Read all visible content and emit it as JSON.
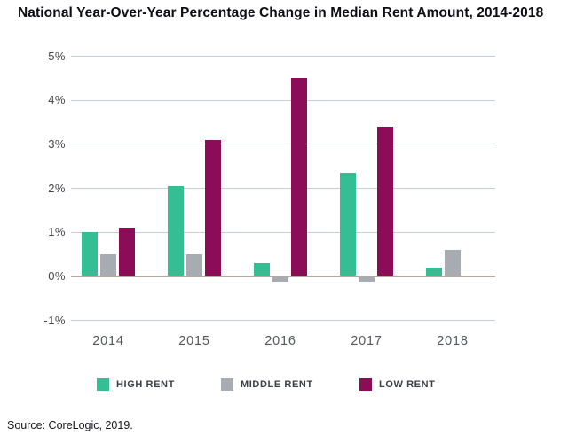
{
  "page": {
    "source": "Source: CoreLogic, 2019."
  },
  "chart_data": {
    "type": "bar",
    "title": "National Year-Over-Year Percentage Change in Median Rent Amount, 2014-2018",
    "xlabel": "",
    "ylabel": "",
    "categories": [
      "2014",
      "2015",
      "2016",
      "2017",
      "2018"
    ],
    "series": [
      {
        "name": "HIGH RENT",
        "color": "#35be94",
        "values": [
          1.0,
          2.05,
          0.3,
          2.35,
          0.2
        ]
      },
      {
        "name": "MIDDLE RENT",
        "color": "#a7acb3",
        "values": [
          0.5,
          0.5,
          -0.1,
          -0.1,
          0.6
        ]
      },
      {
        "name": "LOW RENT",
        "color": "#8c0c58",
        "values": [
          1.1,
          3.1,
          4.5,
          3.4,
          0
        ]
      }
    ],
    "ylim": [
      -1,
      5
    ],
    "y_ticks": [
      {
        "label": "5%",
        "value": 5
      },
      {
        "label": "4%",
        "value": 4
      },
      {
        "label": "3%",
        "value": 3
      },
      {
        "label": "2%",
        "value": 2
      },
      {
        "label": "1%",
        "value": 1
      },
      {
        "label": "0%",
        "value": 0
      },
      {
        "label": "-1%",
        "value": -1
      }
    ],
    "grid": true,
    "legend_position": "bottom"
  },
  "colors": {
    "gridline": "#c7cdd4",
    "zero_axis": "#b2aba5",
    "tick_text": "#44484e",
    "xtick_text": "#54585e",
    "legend_text": "#3b3f45",
    "title_text": "#0d0d12",
    "high_rent": "#35be94",
    "middle_rent": "#a7acb3",
    "low_rent": "#8c0c58"
  }
}
